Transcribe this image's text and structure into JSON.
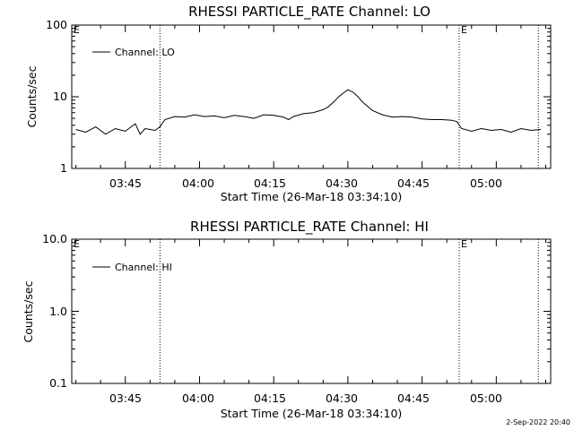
{
  "footer": {
    "date": "2-Sep-2022 20:40"
  },
  "chart_data": [
    {
      "type": "line",
      "title": "RHESSI PARTICLE_RATE Channel: LO",
      "xlabel": "Start Time (26-Mar-18 03:34:10)",
      "ylabel": "Counts/sec",
      "y_scale": "log",
      "xlim": [
        "03:34:10",
        "05:11:00"
      ],
      "ylim": [
        1,
        100
      ],
      "x_ticks": [
        "03:45",
        "04:00",
        "04:15",
        "04:30",
        "04:45",
        "05:00"
      ],
      "y_ticks": [
        "1",
        "10",
        "100"
      ],
      "legend": {
        "placement": "top-left",
        "entries": [
          "Channel: LO"
        ]
      },
      "grid": false,
      "markers": [
        {
          "time": "03:52:00",
          "label": ""
        },
        {
          "time": "04:52:30",
          "label": "E"
        },
        {
          "time": "05:08:30",
          "label": ""
        }
      ],
      "series": [
        {
          "name": "Channel: LO",
          "x": [
            "03:35:00",
            "03:37:00",
            "03:39:00",
            "03:41:00",
            "03:43:00",
            "03:45:00",
            "03:47:00",
            "03:48:00",
            "03:49:00",
            "03:51:00",
            "03:52:00",
            "03:53:00",
            "03:55:00",
            "03:57:00",
            "03:59:00",
            "04:01:00",
            "04:03:00",
            "04:05:00",
            "04:07:00",
            "04:09:00",
            "04:11:00",
            "04:13:00",
            "04:15:00",
            "04:17:00",
            "04:18:00",
            "04:19:00",
            "04:21:00",
            "04:23:00",
            "04:25:00",
            "04:26:00",
            "04:27:00",
            "04:28:00",
            "04:29:00",
            "04:30:00",
            "04:31:00",
            "04:32:00",
            "04:33:00",
            "04:34:00",
            "04:35:00",
            "04:37:00",
            "04:39:00",
            "04:41:00",
            "04:43:00",
            "04:45:00",
            "04:47:00",
            "04:49:00",
            "04:51:00",
            "04:52:00",
            "04:53:00",
            "04:55:00",
            "04:57:00",
            "04:59:00",
            "05:01:00",
            "05:03:00",
            "05:05:00",
            "05:07:00",
            "05:09:00"
          ],
          "values": [
            3.5,
            3.2,
            3.8,
            3.0,
            3.6,
            3.3,
            4.2,
            3.0,
            3.6,
            3.4,
            3.8,
            4.8,
            5.3,
            5.2,
            5.6,
            5.3,
            5.4,
            5.1,
            5.5,
            5.3,
            5.0,
            5.6,
            5.5,
            5.2,
            4.8,
            5.3,
            5.8,
            6.0,
            6.6,
            7.2,
            8.3,
            9.8,
            11.2,
            12.5,
            11.6,
            10.1,
            8.4,
            7.3,
            6.4,
            5.6,
            5.2,
            5.3,
            5.2,
            4.9,
            4.8,
            4.8,
            4.7,
            4.5,
            3.6,
            3.3,
            3.6,
            3.4,
            3.5,
            3.2,
            3.6,
            3.4,
            3.5
          ]
        }
      ]
    },
    {
      "type": "line",
      "title": "RHESSI PARTICLE_RATE Channel: HI",
      "xlabel": "Start Time (26-Mar-18 03:34:10)",
      "ylabel": "Counts/sec",
      "y_scale": "log",
      "xlim": [
        "03:34:10",
        "05:11:00"
      ],
      "ylim": [
        0.1,
        10
      ],
      "x_ticks": [
        "03:45",
        "04:00",
        "04:15",
        "04:30",
        "04:45",
        "05:00"
      ],
      "y_ticks": [
        "0.1",
        "1.0",
        "10.0"
      ],
      "legend": {
        "placement": "top-left",
        "entries": [
          "Channel: HI"
        ]
      },
      "grid": false,
      "markers": [
        {
          "time": "03:52:00",
          "label": ""
        },
        {
          "time": "04:52:30",
          "label": "E"
        },
        {
          "time": "05:08:30",
          "label": ""
        }
      ],
      "series": [
        {
          "name": "Channel: HI",
          "x": [],
          "values": []
        }
      ]
    }
  ]
}
